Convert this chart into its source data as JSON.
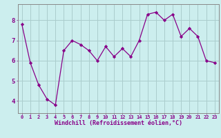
{
  "x": [
    0,
    1,
    2,
    3,
    4,
    5,
    6,
    7,
    8,
    9,
    10,
    11,
    12,
    13,
    14,
    15,
    16,
    17,
    18,
    19,
    20,
    21,
    22,
    23
  ],
  "y": [
    7.8,
    5.9,
    4.8,
    4.1,
    3.8,
    6.5,
    7.0,
    6.8,
    6.5,
    6.0,
    6.7,
    6.2,
    6.6,
    6.2,
    7.0,
    8.3,
    8.4,
    8.0,
    8.3,
    7.2,
    7.6,
    7.2,
    6.0,
    5.9
  ],
  "line_color": "#880088",
  "marker": "D",
  "marker_size": 2.2,
  "bg_color": "#cceeee",
  "grid_color": "#aacccc",
  "xlabel": "Windchill (Refroidissement éolien,°C)",
  "xlabel_color": "#880088",
  "tick_color": "#880088",
  "axis_color": "#888888",
  "ylim": [
    3.4,
    8.8
  ],
  "yticks": [
    4,
    5,
    6,
    7,
    8
  ],
  "xlim": [
    -0.5,
    23.5
  ],
  "xticks": [
    0,
    1,
    2,
    3,
    4,
    5,
    6,
    7,
    8,
    9,
    10,
    11,
    12,
    13,
    14,
    15,
    16,
    17,
    18,
    19,
    20,
    21,
    22,
    23
  ],
  "tick_fontsize": 5.0,
  "xlabel_fontsize": 6.0,
  "ylabel_fontsize": 6.5
}
